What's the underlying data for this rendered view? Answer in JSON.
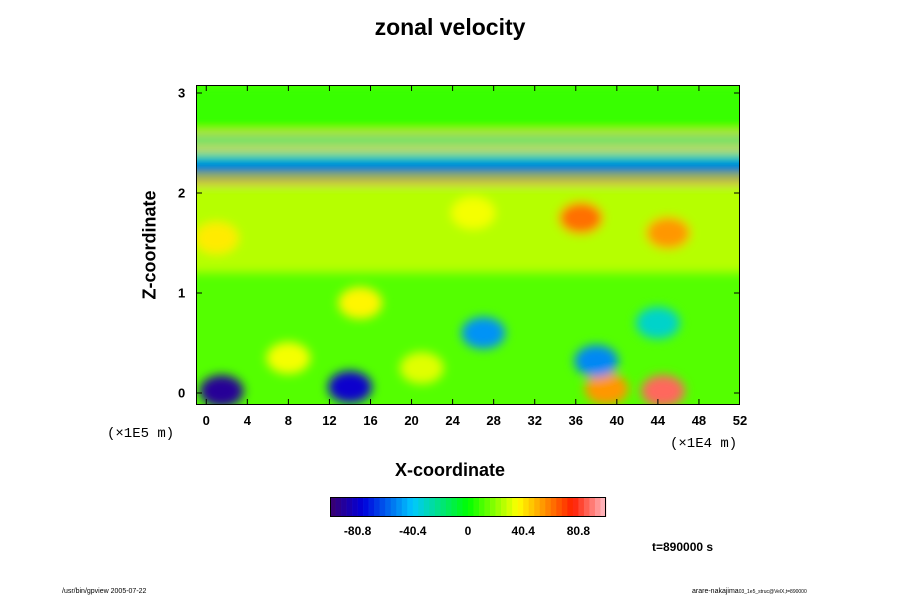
{
  "chart_data": {
    "type": "heatmap",
    "title": "zonal velocity",
    "xlabel": "X-coordinate",
    "ylabel": "Z-coordinate",
    "x_scale_label": "(×1E4 m)",
    "z_scale_label": "(×1E5 m)",
    "xlim": [
      -1,
      52
    ],
    "ylim": [
      -0.12,
      3.08
    ],
    "x_ticks": [
      "0",
      "4",
      "8",
      "12",
      "16",
      "20",
      "24",
      "28",
      "32",
      "36",
      "40",
      "44",
      "48",
      "52"
    ],
    "y_ticks": [
      "0",
      "1",
      "2",
      "3"
    ],
    "colorbar": {
      "range": [
        -101,
        101
      ],
      "ticks": [
        "-80.8",
        "-40.4",
        "0",
        "40.4",
        "80.8"
      ],
      "tick_values": [
        -80.8,
        -40.4,
        0,
        40.4,
        80.8
      ]
    },
    "field": {
      "background": 12,
      "layers": [
        {
          "z": [
            1.2,
            2.08
          ],
          "value": 26
        },
        {
          "z": [
            2.09,
            2.15
          ],
          "value": 88
        },
        {
          "z": [
            2.2,
            2.32
          ],
          "value": -58
        },
        {
          "z": [
            2.32,
            2.42
          ],
          "value": -25
        },
        {
          "z": [
            2.42,
            2.47
          ],
          "value": 45
        },
        {
          "z": [
            2.47,
            2.58
          ],
          "value": -18
        },
        {
          "z": [
            2.58,
            2.62
          ],
          "value": 48
        },
        {
          "z": [
            2.62,
            3.08
          ],
          "value": 8
        }
      ],
      "blobs": [
        {
          "x": 1.5,
          "z": 0.02,
          "value": -92
        },
        {
          "x": 14,
          "z": 0.06,
          "value": -80
        },
        {
          "x": 44.5,
          "z": 0.02,
          "value": 88
        },
        {
          "x": 39,
          "z": 0.04,
          "value": 55
        },
        {
          "x": 27,
          "z": 0.6,
          "value": -50
        },
        {
          "x": 44,
          "z": 0.7,
          "value": -32
        },
        {
          "x": 15,
          "z": 0.9,
          "value": 38
        },
        {
          "x": 38,
          "z": 0.32,
          "value": -52
        },
        {
          "x": 8,
          "z": 0.35,
          "value": 35
        },
        {
          "x": 21,
          "z": 0.25,
          "value": 32
        },
        {
          "x": 36.5,
          "z": 1.75,
          "value": 62
        },
        {
          "x": 45,
          "z": 1.6,
          "value": 55
        },
        {
          "x": 1,
          "z": 1.55,
          "value": 40
        },
        {
          "x": 26,
          "z": 1.8,
          "value": 35
        }
      ]
    },
    "time_label": "t=890000 s"
  },
  "footer": {
    "left": "/usr/bin/gpview 2005-07-22",
    "right_main": "arare-nakajima",
    "right_sub": "03_1e5_struc@VelX,t=890000"
  }
}
